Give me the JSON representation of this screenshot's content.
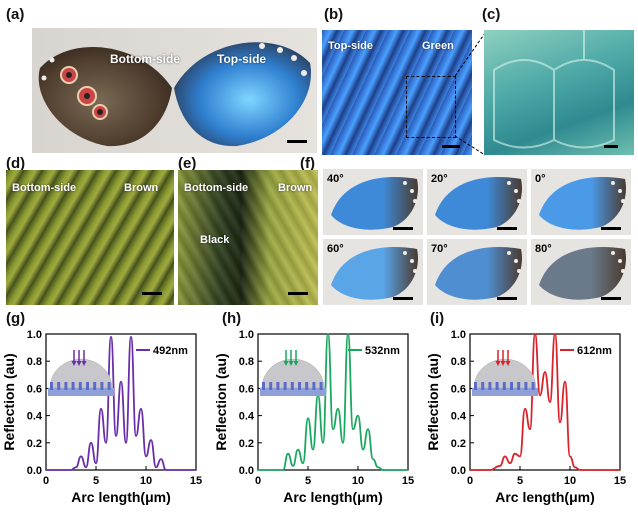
{
  "panels": {
    "a": {
      "label": "(a)",
      "bottom_text": "Bottom-side",
      "top_text": "Top-side"
    },
    "b": {
      "label": "(b)",
      "top_text": "Top-side",
      "green_text": "Green"
    },
    "c": {
      "label": "(c)"
    },
    "d": {
      "label": "(d)",
      "bottom_text": "Bottom-side",
      "brown_text": "Brown"
    },
    "e": {
      "label": "(e)",
      "bottom_text": "Bottom-side",
      "brown_text": "Brown",
      "black_text": "Black"
    },
    "f": {
      "label": "(f)",
      "angles": [
        "40°",
        "20°",
        "0°",
        "60°",
        "70°",
        "80°"
      ]
    },
    "g": {
      "label": "(g)"
    },
    "h": {
      "label": "(h)"
    },
    "i": {
      "label": "(i)"
    }
  },
  "colors": {
    "purple": "#6a2ea8",
    "green": "#1aa860",
    "red": "#d8232a",
    "wing_blue": "#3d8fd8",
    "wing_brown": "#5a4535"
  },
  "chart_data": [
    {
      "type": "line",
      "xlabel": "Arc length(μm)",
      "ylabel": "Reflection (au)",
      "xlim": [
        0,
        15
      ],
      "ylim": [
        0,
        1.0
      ],
      "xticks": [
        "0",
        "5",
        "10",
        "15"
      ],
      "yticks": [
        "0.0",
        "0.2",
        "0.4",
        "0.6",
        "0.8",
        "1.0"
      ],
      "series": [
        {
          "name": "492nm",
          "color": "#6a2ea8",
          "x": [
            2.5,
            3,
            3.5,
            4,
            4.5,
            5,
            5.5,
            6,
            6.5,
            7,
            7.5,
            8,
            8.5,
            9,
            9.5,
            10,
            10.5,
            11,
            11.5,
            12
          ],
          "y": [
            0.0,
            0.02,
            0.1,
            0.02,
            0.2,
            0.05,
            0.45,
            0.2,
            0.98,
            0.25,
            0.65,
            0.2,
            0.98,
            0.25,
            0.45,
            0.1,
            0.22,
            0.02,
            0.08,
            0.0
          ]
        }
      ]
    },
    {
      "type": "line",
      "xlabel": "Arc length(μm)",
      "ylabel": "Reflection (au)",
      "xlim": [
        0,
        15
      ],
      "ylim": [
        0,
        1.0
      ],
      "xticks": [
        "0",
        "5",
        "10",
        "15"
      ],
      "yticks": [
        "0.0",
        "0.2",
        "0.4",
        "0.6",
        "0.8",
        "1.0"
      ],
      "series": [
        {
          "name": "532nm",
          "color": "#1aa860",
          "x": [
            2.5,
            3,
            3.5,
            4,
            4.5,
            5,
            5.5,
            6,
            6.5,
            7,
            7.5,
            8,
            8.5,
            9,
            9.5,
            10,
            10.5,
            11,
            11.5,
            12,
            12.5
          ],
          "y": [
            0.0,
            0.12,
            0.03,
            0.15,
            0.05,
            0.38,
            0.15,
            0.55,
            0.2,
            1.0,
            0.3,
            0.45,
            0.2,
            1.0,
            0.3,
            0.4,
            0.15,
            0.3,
            0.08,
            0.02,
            0.0
          ]
        }
      ]
    },
    {
      "type": "line",
      "xlabel": "Arc length(μm)",
      "ylabel": "Reflection (au)",
      "xlim": [
        0,
        15
      ],
      "ylim": [
        0,
        1.0
      ],
      "xticks": [
        "0",
        "5",
        "10",
        "15"
      ],
      "yticks": [
        "0.0",
        "0.2",
        "0.4",
        "0.6",
        "0.8",
        "1.0"
      ],
      "series": [
        {
          "name": "612nm",
          "color": "#d8232a",
          "x": [
            2,
            3,
            3.5,
            4,
            4.5,
            5,
            5.5,
            6,
            6.5,
            7,
            7.5,
            8,
            8.5,
            9,
            9.5,
            10,
            10.5,
            11
          ],
          "y": [
            0.0,
            0.03,
            0.1,
            0.05,
            0.12,
            0.1,
            0.45,
            0.3,
            1.0,
            0.55,
            0.72,
            0.5,
            1.0,
            0.35,
            0.65,
            0.1,
            0.02,
            0.0
          ]
        }
      ]
    }
  ]
}
